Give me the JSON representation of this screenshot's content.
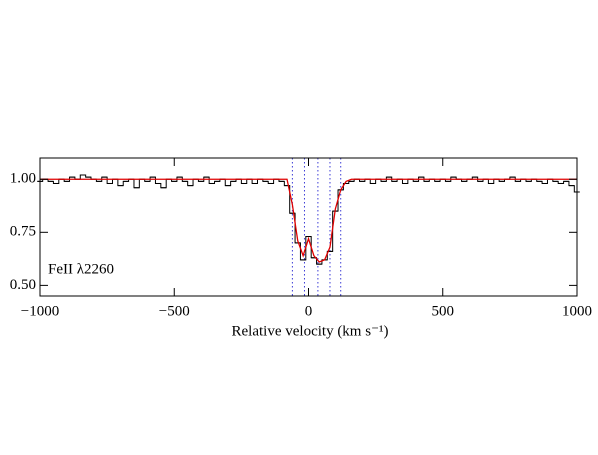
{
  "chart_data": {
    "type": "step",
    "label": "FeII λ2260",
    "xlabel": "Relative velocity (km s⁻¹)",
    "xlim": [
      -1000,
      1000
    ],
    "ylim": [
      0.45,
      1.1
    ],
    "xticks": [
      {
        "value": -1000,
        "label": "−1000"
      },
      {
        "value": -500,
        "label": "−500"
      },
      0,
      500,
      1000
    ],
    "yticks": [
      {
        "value": 0.5,
        "label": "0.50"
      },
      {
        "value": 0.75,
        "label": "0.75"
      },
      {
        "value": 1.0,
        "label": "1.00"
      }
    ],
    "components": [
      -60,
      -15,
      35,
      80,
      120
    ],
    "component_color": "#3b3bd6",
    "x": [
      -1000,
      -980,
      -960,
      -940,
      -920,
      -900,
      -880,
      -860,
      -840,
      -820,
      -800,
      -780,
      -760,
      -740,
      -720,
      -700,
      -680,
      -660,
      -640,
      -620,
      -600,
      -580,
      -560,
      -540,
      -520,
      -500,
      -480,
      -460,
      -440,
      -420,
      -400,
      -380,
      -360,
      -340,
      -320,
      -300,
      -280,
      -260,
      -240,
      -220,
      -200,
      -180,
      -160,
      -140,
      -120,
      -100,
      -80,
      -60,
      -40,
      -20,
      0,
      20,
      40,
      60,
      80,
      100,
      120,
      140,
      160,
      180,
      200,
      220,
      240,
      260,
      280,
      300,
      320,
      340,
      360,
      380,
      400,
      420,
      440,
      460,
      480,
      500,
      520,
      540,
      560,
      580,
      600,
      620,
      640,
      660,
      680,
      700,
      720,
      740,
      760,
      780,
      800,
      820,
      840,
      860,
      880,
      900,
      920,
      940,
      960,
      980,
      1000
    ],
    "series": [
      {
        "color": "#000000",
        "style": "step",
        "values": [
          0.99,
          1.0,
          0.99,
          0.98,
          1.0,
          0.99,
          1.01,
          1.0,
          1.02,
          1.01,
          1.0,
          0.99,
          1.01,
          0.98,
          1.0,
          0.97,
          0.99,
          1.0,
          0.96,
          1.0,
          0.99,
          1.01,
          0.98,
          0.96,
          1.0,
          0.99,
          1.01,
          0.99,
          0.97,
          1.0,
          0.99,
          1.01,
          0.98,
          0.99,
          1.0,
          0.97,
          0.99,
          1.0,
          0.98,
          1.0,
          0.98,
          1.0,
          0.99,
          0.98,
          1.0,
          0.99,
          0.97,
          0.84,
          0.7,
          0.62,
          0.73,
          0.63,
          0.6,
          0.62,
          0.66,
          0.85,
          0.95,
          0.98,
          0.99,
          1.0,
          0.99,
          1.0,
          0.98,
          1.0,
          0.99,
          1.01,
          0.99,
          1.0,
          0.98,
          1.0,
          0.99,
          1.01,
          0.99,
          1.0,
          0.99,
          1.0,
          0.99,
          1.01,
          1.0,
          0.99,
          1.0,
          1.01,
          0.99,
          1.0,
          0.98,
          1.0,
          0.99,
          1.0,
          1.01,
          0.99,
          1.0,
          0.99,
          1.0,
          0.99,
          0.98,
          1.0,
          0.99,
          0.98,
          0.99,
          0.97,
          0.94
        ]
      },
      {
        "color": "#e00000",
        "style": "line",
        "values": [
          1.0,
          1.0,
          1.0,
          1.0,
          1.0,
          1.0,
          1.0,
          1.0,
          1.0,
          1.0,
          1.0,
          1.0,
          1.0,
          1.0,
          1.0,
          1.0,
          1.0,
          1.0,
          1.0,
          1.0,
          1.0,
          1.0,
          1.0,
          1.0,
          1.0,
          1.0,
          1.0,
          1.0,
          1.0,
          1.0,
          1.0,
          1.0,
          1.0,
          1.0,
          1.0,
          1.0,
          1.0,
          1.0,
          1.0,
          1.0,
          1.0,
          1.0,
          1.0,
          1.0,
          1.0,
          1.0,
          1.0,
          0.88,
          0.71,
          0.64,
          0.72,
          0.64,
          0.61,
          0.62,
          0.68,
          0.86,
          0.95,
          0.99,
          1.0,
          1.0,
          1.0,
          1.0,
          1.0,
          1.0,
          1.0,
          1.0,
          1.0,
          1.0,
          1.0,
          1.0,
          1.0,
          1.0,
          1.0,
          1.0,
          1.0,
          1.0,
          1.0,
          1.0,
          1.0,
          1.0,
          1.0,
          1.0,
          1.0,
          1.0,
          1.0,
          1.0,
          1.0,
          1.0,
          1.0,
          1.0,
          1.0,
          1.0,
          1.0,
          1.0,
          1.0,
          1.0,
          1.0,
          1.0,
          1.0,
          1.0,
          1.0
        ]
      }
    ]
  }
}
